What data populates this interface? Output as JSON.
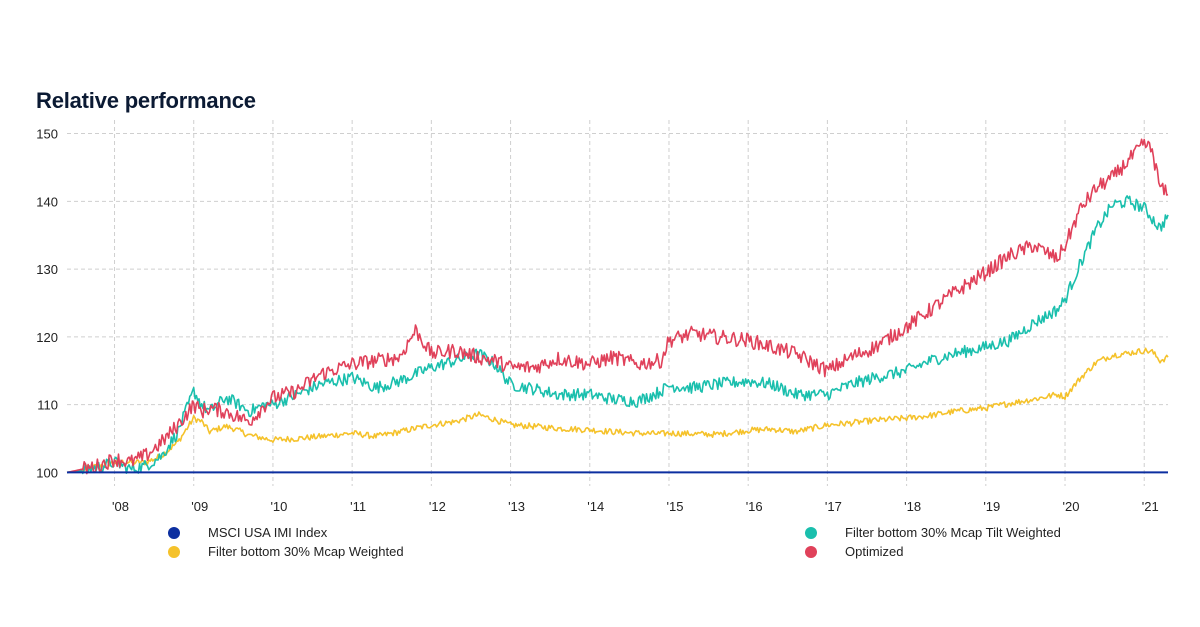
{
  "chart_data": {
    "type": "line",
    "title": "Relative performance",
    "ylim": [
      98,
      152
    ],
    "y_ticks": [
      100,
      110,
      120,
      130,
      140,
      150
    ],
    "x_tick_labels": [
      "'08",
      "'09",
      "'10",
      "'11",
      "'12",
      "'13",
      "'14",
      "'15",
      "'16",
      "'17",
      "'18",
      "'19",
      "'20",
      "'21"
    ],
    "x_ticks": [
      2008.0,
      2009.0,
      2010.0,
      2011.0,
      2012.0,
      2013.0,
      2014.0,
      2015.0,
      2016.0,
      2017.0,
      2018.0,
      2019.0,
      2020.0,
      2021.0
    ],
    "xlim": [
      2007.4,
      2021.3
    ],
    "grid": true,
    "legend_position": "bottom",
    "x": [
      2007.4,
      2007.6,
      2007.8,
      2008.0,
      2008.2,
      2008.4,
      2008.6,
      2008.8,
      2009.0,
      2009.1,
      2009.2,
      2009.4,
      2009.5,
      2009.7,
      2009.9,
      2010.0,
      2010.3,
      2010.6,
      2011.0,
      2011.3,
      2011.6,
      2011.8,
      2012.0,
      2012.3,
      2012.6,
      2012.8,
      2013.0,
      2013.3,
      2013.6,
      2014.0,
      2014.3,
      2014.6,
      2014.9,
      2015.0,
      2015.3,
      2015.6,
      2016.0,
      2016.3,
      2016.6,
      2017.0,
      2017.3,
      2017.6,
      2018.0,
      2018.3,
      2018.6,
      2019.0,
      2019.3,
      2019.6,
      2019.9,
      2020.0,
      2020.2,
      2020.4,
      2020.6,
      2020.8,
      2021.0,
      2021.1,
      2021.2,
      2021.3
    ],
    "series": [
      {
        "name": "MSCI USA IMI Index",
        "color": "#0c2fa0",
        "values": [
          100,
          100,
          100,
          100,
          100,
          100,
          100,
          100,
          100,
          100,
          100,
          100,
          100,
          100,
          100,
          100,
          100,
          100,
          100,
          100,
          100,
          100,
          100,
          100,
          100,
          100,
          100,
          100,
          100,
          100,
          100,
          100,
          100,
          100,
          100,
          100,
          100,
          100,
          100,
          100,
          100,
          100,
          100,
          100,
          100,
          100,
          100,
          100,
          100,
          100,
          100,
          100,
          100,
          100,
          100,
          100,
          100,
          100
        ]
      },
      {
        "name": "Filter bottom 30% Mcap Weighted",
        "color": "#f5c22b",
        "values": [
          100,
          100.4,
          101,
          101.5,
          101.5,
          101.5,
          102.5,
          104.5,
          108,
          107.5,
          106,
          106.8,
          106.5,
          105.5,
          105,
          104.8,
          105,
          105.3,
          105.8,
          105.3,
          106,
          106.5,
          107,
          107.5,
          108.5,
          107.8,
          107,
          106.8,
          106.5,
          106.3,
          106,
          105.8,
          105.7,
          105.8,
          105.7,
          105.6,
          106.2,
          106.4,
          106,
          107,
          107.3,
          107.7,
          108,
          108.4,
          109,
          109.5,
          110.2,
          110.8,
          111.5,
          111.2,
          114,
          116.3,
          117.3,
          117.6,
          118,
          117.8,
          116.5,
          117
        ]
      },
      {
        "name": "Filter bottom 30% Mcap Tilt Weighted",
        "color": "#1abfad",
        "values": [
          100,
          100.3,
          100.8,
          101.5,
          100.5,
          101,
          102.5,
          106,
          112,
          110,
          109,
          111,
          110.5,
          109,
          110,
          110,
          111.5,
          113,
          114,
          112.5,
          113.5,
          114.5,
          115.5,
          116.5,
          117.5,
          116,
          113,
          112.3,
          111.5,
          111.5,
          110.8,
          110.5,
          112,
          112.8,
          112.5,
          113,
          113.5,
          113,
          111.5,
          111.5,
          113,
          114,
          115,
          116.5,
          117.5,
          118.5,
          119.5,
          122,
          124,
          125.5,
          131,
          136,
          139.5,
          140,
          139,
          137.5,
          136,
          138
        ]
      },
      {
        "name": "Optimized",
        "color": "#e0415a",
        "values": [
          100,
          100.5,
          101,
          102,
          101.5,
          102.5,
          104.5,
          107,
          110,
          109,
          109.5,
          109,
          108.5,
          107.5,
          110,
          111,
          112,
          114.5,
          116,
          116.5,
          117,
          121,
          117.5,
          118,
          117,
          116.5,
          115.5,
          115.5,
          116.8,
          116,
          117,
          116,
          116.5,
          119.5,
          120.5,
          120,
          119.5,
          118.5,
          117.5,
          115,
          117,
          118.5,
          121.5,
          124,
          126.5,
          129.5,
          132,
          133.5,
          131.5,
          133.5,
          139,
          142,
          143.5,
          146,
          148.5,
          147.5,
          142,
          141
        ]
      }
    ]
  },
  "legend": [
    {
      "label": "MSCI USA IMI Index",
      "color": "#0c2fa0"
    },
    {
      "label": "Filter bottom 30% Mcap Weighted",
      "color": "#f5c22b"
    },
    {
      "label": "Filter bottom 30% Mcap Tilt Weighted",
      "color": "#1abfad"
    },
    {
      "label": "Optimized",
      "color": "#e0415a"
    }
  ]
}
